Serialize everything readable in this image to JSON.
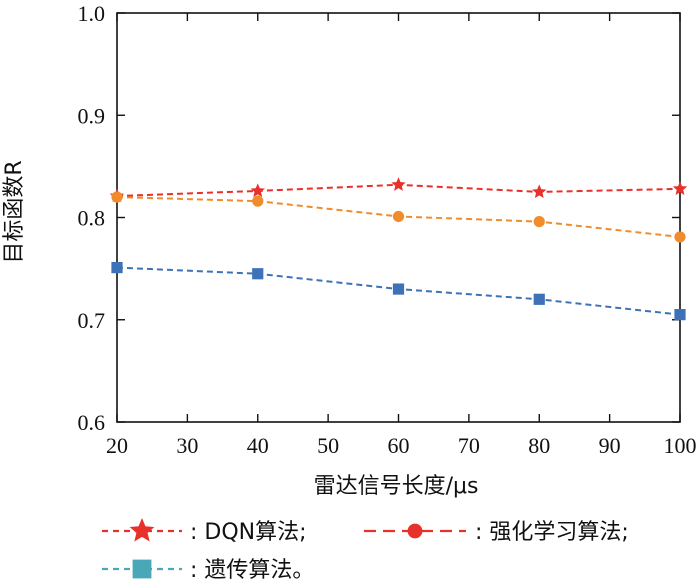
{
  "chart_data": {
    "type": "line",
    "title": "",
    "xlabel": "雷达信号长度/μs",
    "ylabel": "目标函数R",
    "xlim": [
      20,
      100
    ],
    "ylim": [
      0.6,
      1.0
    ],
    "x_ticks": [
      "20",
      "30",
      "40",
      "50",
      "60",
      "70",
      "80",
      "90",
      "100"
    ],
    "y_ticks": [
      "0.6",
      "0.7",
      "0.8",
      "0.9",
      "1.0"
    ],
    "grid": false,
    "legend_position": "bottom",
    "x": [
      20,
      40,
      60,
      80,
      100
    ],
    "series": [
      {
        "name": ": DQN算法;",
        "marker": "star",
        "color": "#e8312a",
        "values": [
          0.821,
          0.826,
          0.832,
          0.825,
          0.828
        ]
      },
      {
        "name": ": 强化学习算法;",
        "marker": "circle",
        "color": "#f08c2b",
        "legend_color": "#e8312a",
        "values": [
          0.82,
          0.816,
          0.801,
          0.796,
          0.781
        ]
      },
      {
        "name": ": 遗传算法。",
        "marker": "square",
        "color": "#3d72b8",
        "legend_color": "#4aa7b8",
        "values": [
          0.751,
          0.745,
          0.73,
          0.72,
          0.705
        ]
      }
    ]
  }
}
